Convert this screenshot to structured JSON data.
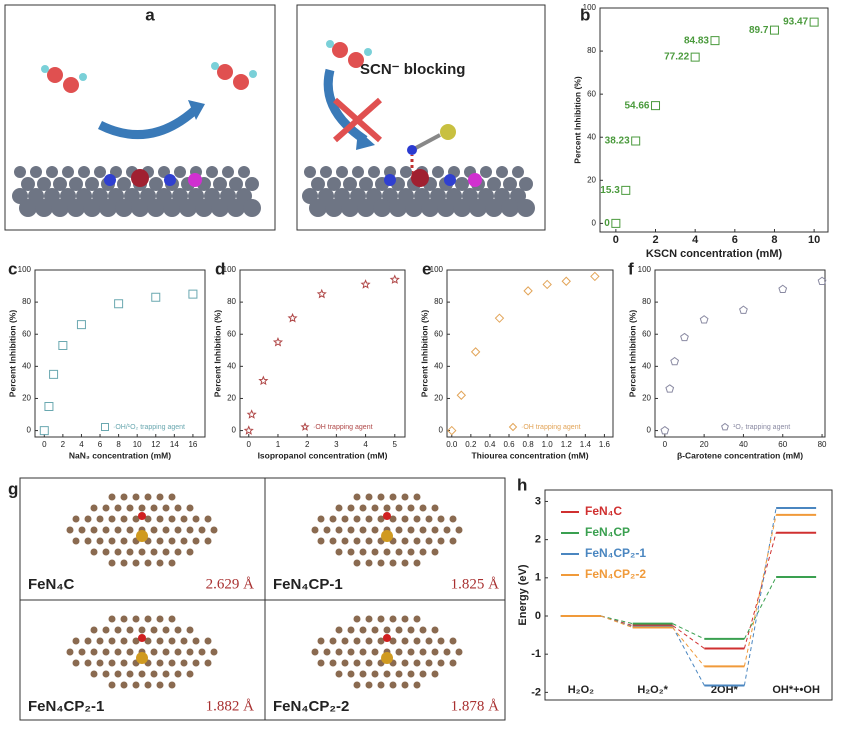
{
  "panel_a": {
    "panel": "a",
    "caption": "SCN⁻ blocking"
  },
  "panel_g": {
    "panel": "g",
    "items": [
      {
        "name": "FeN₄C",
        "distance": "2.629 Å"
      },
      {
        "name": "FeN₄CP-1",
        "distance": "1.825 Å"
      },
      {
        "name": "FeN₄CP₂-1",
        "distance": "1.882 Å"
      },
      {
        "name": "FeN₄CP₂-2",
        "distance": "1.878 Å"
      }
    ]
  },
  "chart_data": [
    {
      "type": "scatter",
      "panel": "b",
      "x_label": "KSCN concentration (mM)",
      "y_label": "Percent Inhibition (%)",
      "x": [
        0,
        0.5,
        1,
        2,
        4,
        5,
        8,
        10
      ],
      "values": [
        0,
        15.3,
        38.23,
        54.66,
        77.22,
        84.83,
        89.7,
        93.47
      ],
      "color": "#4a9a3c",
      "marker": "square",
      "show_values": true,
      "xlim": [
        -0.8,
        10.7
      ],
      "ylim": [
        -4,
        100
      ],
      "xticks": [
        0,
        2,
        4,
        6,
        8,
        10
      ],
      "yticks": [
        0,
        20,
        40,
        60,
        80,
        100
      ]
    },
    {
      "type": "scatter",
      "panel": "c",
      "x_label": "NaN₃ concentration (mM)",
      "y_label": "Percent Inhibition (%)",
      "legend": "·OH/¹O₂ trapping agent",
      "x": [
        0,
        0.5,
        1,
        2,
        4,
        8,
        12,
        16
      ],
      "values": [
        0,
        15,
        35,
        53,
        66,
        79,
        83,
        85
      ],
      "color": "#6aa8b0",
      "marker": "square",
      "xlim": [
        -1,
        17.3
      ],
      "ylim": [
        -4,
        100
      ],
      "xticks": [
        0,
        2,
        4,
        6,
        8,
        10,
        12,
        14,
        16
      ],
      "yticks": [
        0,
        20,
        40,
        60,
        80,
        100
      ]
    },
    {
      "type": "scatter",
      "panel": "d",
      "x_label": "Isopropanol concentration (mM)",
      "y_label": "Percent Inhibition (%)",
      "legend": "·OH trapping agent",
      "x": [
        0,
        0.1,
        0.5,
        1,
        1.5,
        2.5,
        4,
        5
      ],
      "values": [
        0,
        10,
        31,
        55,
        70,
        85,
        91,
        94
      ],
      "color": "#b04848",
      "marker": "star",
      "xlim": [
        -0.3,
        5.35
      ],
      "ylim": [
        -4,
        100
      ],
      "xticks": [
        0,
        1,
        2,
        3,
        4,
        5
      ],
      "yticks": [
        0,
        20,
        40,
        60,
        80,
        100
      ]
    },
    {
      "type": "scatter",
      "panel": "e",
      "x_label": "Thiourea concentration (mM)",
      "y_label": "Percent Inhibition (%)",
      "legend": "·OH trapping agent",
      "x": [
        0,
        0.1,
        0.25,
        0.5,
        0.8,
        1.0,
        1.2,
        1.5
      ],
      "values": [
        0,
        22,
        49,
        70,
        87,
        91,
        93,
        96
      ],
      "color": "#e2a458",
      "marker": "diamond",
      "xlim": [
        -0.05,
        1.69
      ],
      "ylim": [
        -4,
        100
      ],
      "xticks": [
        {
          "value": 0,
          "label": "0.0"
        },
        0.2,
        0.4,
        0.6,
        0.8,
        {
          "value": 1,
          "label": "1.0"
        },
        1.2,
        1.4,
        1.6
      ],
      "yticks": [
        0,
        20,
        40,
        60,
        80,
        100
      ]
    },
    {
      "type": "scatter",
      "panel": "f",
      "x_label": "β-Carotene concentration (mM)",
      "y_label": "Percent Inhibition (%)",
      "legend": "¹O₂ trapping agent",
      "x": [
        0,
        2.5,
        5,
        10,
        20,
        40,
        60,
        80
      ],
      "values": [
        0,
        26,
        43,
        58,
        69,
        75,
        88,
        93
      ],
      "color": "#8a8aa2",
      "marker": "pentagon",
      "xlim": [
        -5,
        81.5
      ],
      "ylim": [
        -4,
        100
      ],
      "xticks": [
        0,
        20,
        40,
        60,
        80
      ],
      "yticks": [
        0,
        20,
        40,
        60,
        80,
        100
      ]
    },
    {
      "type": "energy",
      "panel": "h",
      "y_label": "Energy (eV)",
      "categories": [
        "H₂O₂",
        "H₂O₂*",
        "2OH*",
        "OH*+•OH"
      ],
      "series": [
        {
          "name": "FeN₄C",
          "color": "#d03030",
          "values": [
            0,
            -0.25,
            -0.85,
            2.18
          ]
        },
        {
          "name": "FeN₄CP",
          "color": "#3aa050",
          "values": [
            0,
            -0.2,
            -0.6,
            1.02
          ]
        },
        {
          "name": "FeN₄CP₂-1",
          "color": "#4a86c0",
          "values": [
            0,
            -0.28,
            -1.82,
            2.83
          ]
        },
        {
          "name": "FeN₄CP₂-2",
          "color": "#f09a3a",
          "values": [
            0,
            -0.3,
            -1.32,
            2.65
          ]
        }
      ],
      "ylim": [
        -2.2,
        3.3
      ],
      "yticks": [
        -2,
        -1,
        0,
        1,
        2,
        3
      ]
    }
  ]
}
